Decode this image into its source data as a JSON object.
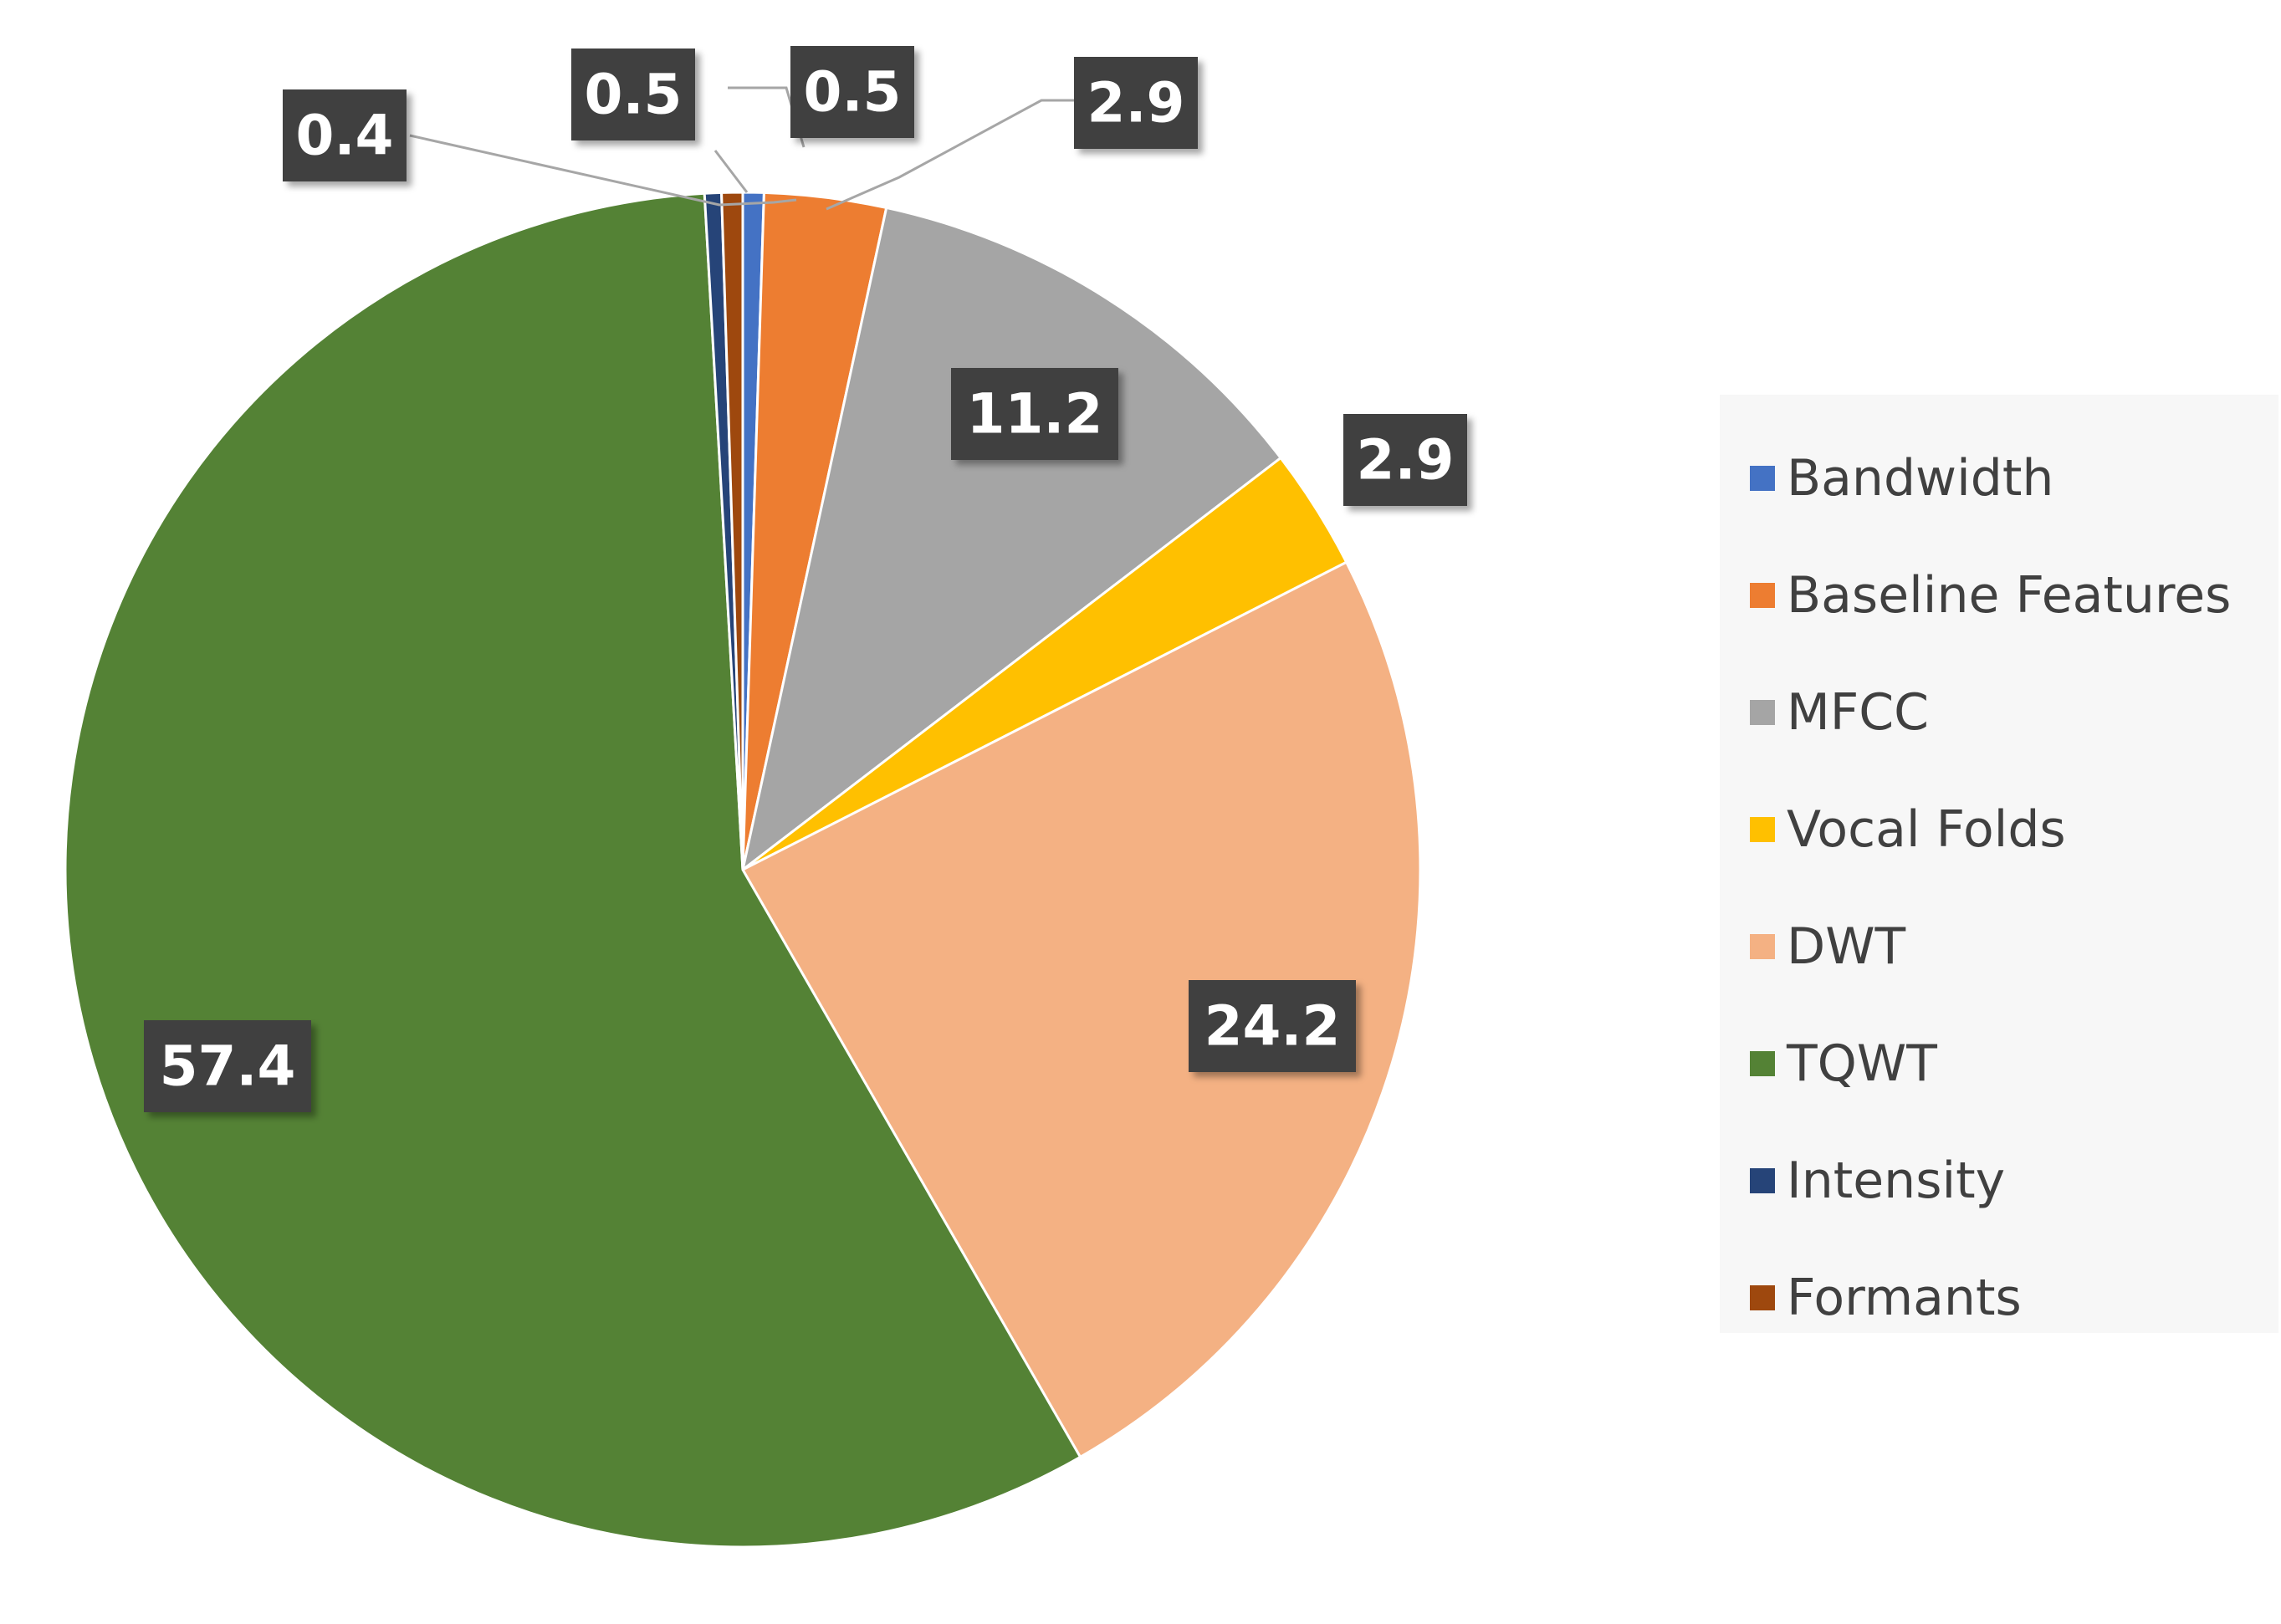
{
  "chart_data": {
    "type": "pie",
    "title": "",
    "categories": [
      "Bandwidth",
      "Baseline Features",
      "MFCC",
      "Vocal Folds",
      "DWT",
      "TQWT",
      "Intensity",
      "Formants"
    ],
    "values": [
      0.5,
      2.9,
      11.2,
      2.9,
      24.2,
      57.4,
      0.4,
      0.5
    ],
    "data_labels": [
      "0.5",
      "2.9",
      "11.2",
      "2.9",
      "24.2",
      "57.4",
      "0.4",
      "0.5"
    ],
    "colors": [
      "#4472c4",
      "#ed7d31",
      "#a5a5a5",
      "#ffc000",
      "#f4b183",
      "#548235",
      "#264478",
      "#9e480e"
    ],
    "start_angle_deg": 0,
    "direction": "clockwise",
    "legend": {
      "position": "right",
      "entries": [
        "Bandwidth",
        "Baseline Features",
        "MFCC",
        "Vocal Folds",
        "DWT",
        "TQWT",
        "Intensity",
        "Formants"
      ]
    },
    "label_style": {
      "background": "#404040",
      "text_color": "#ffffff"
    }
  }
}
